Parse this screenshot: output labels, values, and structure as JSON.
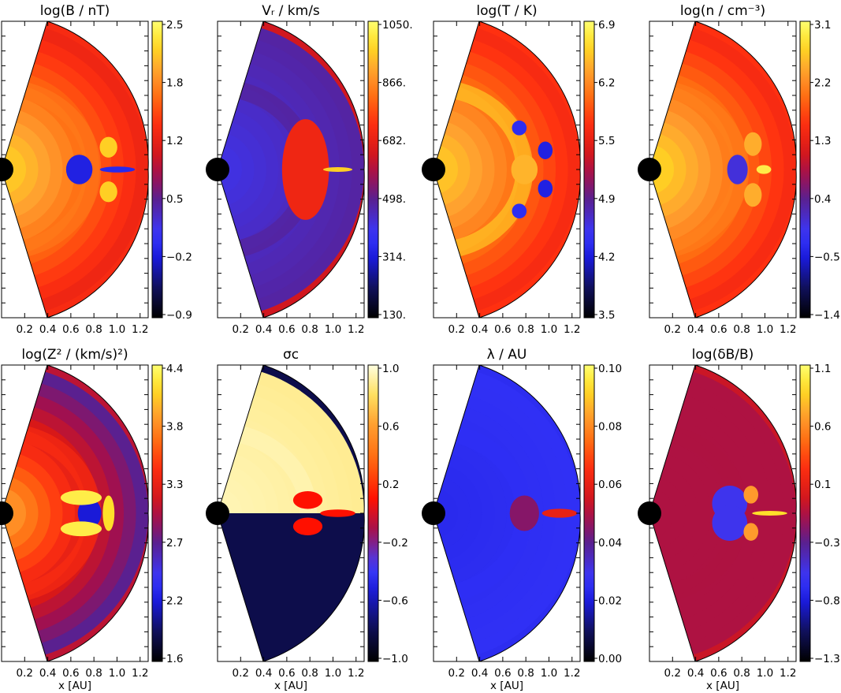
{
  "x_axis": {
    "ticks": [
      "0.2",
      "0.4",
      "0.6",
      "0.8",
      "1.0",
      "1.2"
    ],
    "label": "x [AU]"
  },
  "colormaps": {
    "heat": [
      [
        0.0,
        "#000000"
      ],
      [
        0.1,
        "#10105a"
      ],
      [
        0.2,
        "#1a1ad8"
      ],
      [
        0.28,
        "#3838ff"
      ],
      [
        0.4,
        "#5a2090"
      ],
      [
        0.48,
        "#a01050"
      ],
      [
        0.56,
        "#d81818"
      ],
      [
        0.66,
        "#ff3010"
      ],
      [
        0.74,
        "#ff6a10"
      ],
      [
        0.83,
        "#ffa030"
      ],
      [
        0.92,
        "#ffdc20"
      ],
      [
        1.0,
        "#ffff70"
      ]
    ],
    "heat_pale": [
      [
        0.0,
        "#000000"
      ],
      [
        0.12,
        "#10105a"
      ],
      [
        0.24,
        "#1a1ad8"
      ],
      [
        0.32,
        "#4040ff"
      ],
      [
        0.44,
        "#a01050"
      ],
      [
        0.55,
        "#ff1000"
      ],
      [
        0.68,
        "#ff6a10"
      ],
      [
        0.8,
        "#ffa030"
      ],
      [
        0.9,
        "#ffe060"
      ],
      [
        1.0,
        "#ffffe0"
      ]
    ]
  },
  "chart_data": [
    {
      "type": "heatmap",
      "title": "log(B / nT)",
      "colorbar": {
        "ticks": [
          "2.5",
          "1.8",
          "1.2",
          "0.5",
          "−0.2",
          "−0.9"
        ],
        "range": [
          -0.9,
          2.5
        ],
        "colormap": "heat"
      },
      "field": {
        "inner": 0.94,
        "outer": 0.62,
        "boundary": 0.77,
        "background": 0.64,
        "features": [
          {
            "r": 0.53,
            "a": 0.0,
            "sr": 0.09,
            "sa": 0.1,
            "v": 0.22
          },
          {
            "r": 0.79,
            "a": 0.0,
            "sr": 0.12,
            "sa": 0.02,
            "v": 0.24
          },
          {
            "r": 0.74,
            "a": 0.17,
            "sr": 0.06,
            "sa": 0.07,
            "v": 0.9
          },
          {
            "r": 0.74,
            "a": -0.17,
            "sr": 0.06,
            "sa": 0.07,
            "v": 0.9
          }
        ]
      }
    },
    {
      "type": "heatmap",
      "title": "Vᵣ / km/s",
      "colorbar": {
        "ticks": [
          "1050.",
          "866.",
          "682.",
          "498.",
          "314.",
          "130."
        ],
        "range": [
          130,
          1050
        ],
        "colormap": "heat"
      },
      "field": {
        "inner": 0.3,
        "outer": 0.38,
        "boundary": 0.4,
        "background": 0.55,
        "features": [
          {
            "r": 0.7,
            "a": 0.0,
            "sr": 0.06,
            "sa": 0.12,
            "v": 0.97
          },
          {
            "r": 0.6,
            "a": 0.0,
            "sr": 0.16,
            "sa": 0.34,
            "v": 0.62
          },
          {
            "r": 0.82,
            "a": 0.0,
            "sr": 0.1,
            "sa": 0.015,
            "v": 0.9
          }
        ]
      }
    },
    {
      "type": "heatmap",
      "title": "log(T / K)",
      "colorbar": {
        "ticks": [
          "6.9",
          "6.2",
          "5.5",
          "4.9",
          "4.2",
          "3.5"
        ],
        "range": [
          3.5,
          6.9
        ],
        "colormap": "heat"
      },
      "field": {
        "inner": 0.93,
        "outer": 0.64,
        "boundary": 0.93,
        "background": 0.66,
        "features": [
          {
            "r": 0.62,
            "a": 0.0,
            "sr": 0.09,
            "sa": 0.1,
            "v": 0.86
          },
          {
            "r": 0.63,
            "a": 0.38,
            "sr": 0.05,
            "sa": 0.05,
            "v": 0.25
          },
          {
            "r": 0.63,
            "a": -0.38,
            "sr": 0.05,
            "sa": 0.05,
            "v": 0.25
          },
          {
            "r": 0.77,
            "a": 0.14,
            "sr": 0.05,
            "sa": 0.06,
            "v": 0.22
          },
          {
            "r": 0.77,
            "a": -0.14,
            "sr": 0.05,
            "sa": 0.06,
            "v": 0.22
          }
        ]
      }
    },
    {
      "type": "heatmap",
      "title": "log(n / cm⁻³)",
      "colorbar": {
        "ticks": [
          "3.1",
          "2.2",
          "1.3",
          "0.4",
          "−0.5",
          "−1.4"
        ],
        "range": [
          -1.4,
          3.1
        ],
        "colormap": "heat"
      },
      "field": {
        "inner": 0.95,
        "outer": 0.64,
        "boundary": 0.78,
        "background": 0.66,
        "features": [
          {
            "r": 0.6,
            "a": 0.0,
            "sr": 0.07,
            "sa": 0.1,
            "v": 0.32
          },
          {
            "r": 0.78,
            "a": 0.0,
            "sr": 0.05,
            "sa": 0.03,
            "v": 0.96
          },
          {
            "r": 0.72,
            "a": 0.2,
            "sr": 0.06,
            "sa": 0.08,
            "v": 0.85
          },
          {
            "r": 0.72,
            "a": -0.2,
            "sr": 0.06,
            "sa": 0.08,
            "v": 0.85
          }
        ]
      }
    },
    {
      "type": "heatmap",
      "title": "log(Z² / (km/s)²)",
      "colorbar": {
        "ticks": [
          "4.4",
          "3.8",
          "3.3",
          "2.7",
          "2.2",
          "1.6"
        ],
        "range": [
          1.6,
          4.4
        ],
        "colormap": "heat"
      },
      "field": {
        "inner": 0.88,
        "outer": 0.4,
        "boundary": 0.66,
        "background": 0.52,
        "features": [
          {
            "r": 0.6,
            "a": 0.0,
            "sr": 0.08,
            "sa": 0.1,
            "v": 0.2
          },
          {
            "r": 0.55,
            "a": 0.16,
            "sr": 0.14,
            "sa": 0.05,
            "v": 0.96
          },
          {
            "r": 0.55,
            "a": -0.16,
            "sr": 0.14,
            "sa": 0.05,
            "v": 0.96
          },
          {
            "r": 0.73,
            "a": 0.0,
            "sr": 0.04,
            "sa": 0.12,
            "v": 0.93
          }
        ]
      }
    },
    {
      "type": "heatmap",
      "title": "σc",
      "colorbar": {
        "ticks": [
          "1.0",
          "0.6",
          "0.2",
          "−0.2",
          "−0.6",
          "−1.0"
        ],
        "range": [
          -1.0,
          1.0
        ],
        "colormap": "heat_pale"
      },
      "field": {
        "inner": 0.97,
        "outer": 0.94,
        "boundary": 0.97,
        "background": 0.1,
        "split": "south",
        "features": [
          {
            "r": 0.62,
            "a": 0.12,
            "sr": 0.1,
            "sa": 0.06,
            "v": 0.55
          },
          {
            "r": 0.62,
            "a": -0.12,
            "sr": 0.1,
            "sa": 0.06,
            "v": 0.55
          },
          {
            "r": 0.82,
            "a": 0.0,
            "sr": 0.12,
            "sa": 0.025,
            "v": 0.55
          }
        ]
      }
    },
    {
      "type": "heatmap",
      "title": "λ / AU",
      "colorbar": {
        "ticks": [
          "0.10",
          "0.08",
          "0.06",
          "0.04",
          "0.02",
          "0.00"
        ],
        "range": [
          0.0,
          0.1
        ],
        "colormap": "heat"
      },
      "field": {
        "inner": 0.24,
        "outer": 0.26,
        "boundary": 0.26,
        "background": 0.25,
        "features": [
          {
            "r": 0.62,
            "a": 0.0,
            "sr": 0.1,
            "sa": 0.12,
            "v": 0.45
          },
          {
            "r": 0.86,
            "a": 0.0,
            "sr": 0.12,
            "sa": 0.03,
            "v": 0.6
          }
        ]
      }
    },
    {
      "type": "heatmap",
      "title": "log(δB/B)",
      "colorbar": {
        "ticks": [
          "1.1",
          "0.6",
          "0.1",
          "−0.3",
          "−0.8",
          "−1.3"
        ],
        "range": [
          -1.3,
          1.1
        ],
        "colormap": "heat"
      },
      "field": {
        "inner": 0.5,
        "outer": 0.5,
        "boundary": 0.5,
        "background": 0.54,
        "features": [
          {
            "r": 0.55,
            "a": 0.1,
            "sr": 0.12,
            "sa": 0.12,
            "v": 0.3
          },
          {
            "r": 0.55,
            "a": -0.1,
            "sr": 0.12,
            "sa": 0.12,
            "v": 0.3
          },
          {
            "r": 0.82,
            "a": 0.0,
            "sr": 0.12,
            "sa": 0.015,
            "v": 0.93
          },
          {
            "r": 0.7,
            "a": 0.15,
            "sr": 0.05,
            "sa": 0.06,
            "v": 0.82
          },
          {
            "r": 0.7,
            "a": -0.15,
            "sr": 0.05,
            "sa": 0.06,
            "v": 0.82
          }
        ]
      }
    }
  ]
}
